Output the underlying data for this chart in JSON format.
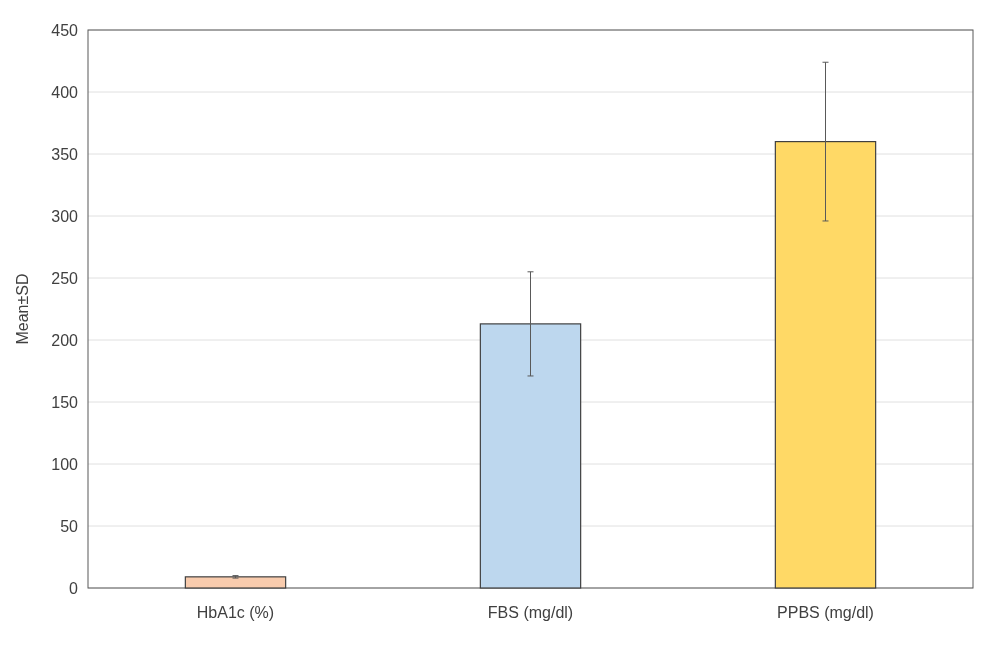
{
  "chart_data": {
    "type": "bar",
    "ylabel": "Mean±SD",
    "categories": [
      "HbA1c (%)",
      "FBS (mg/dl)",
      "PPBS (mg/dl)"
    ],
    "values": [
      9,
      213,
      360
    ],
    "errors": [
      1,
      42,
      64
    ],
    "colors": [
      "#f8cbad",
      "#bdd7ee",
      "#ffd966"
    ],
    "ylim": [
      0,
      450
    ],
    "yticks": [
      0,
      50,
      100,
      150,
      200,
      250,
      300,
      350,
      400,
      450
    ],
    "grid": "y"
  }
}
